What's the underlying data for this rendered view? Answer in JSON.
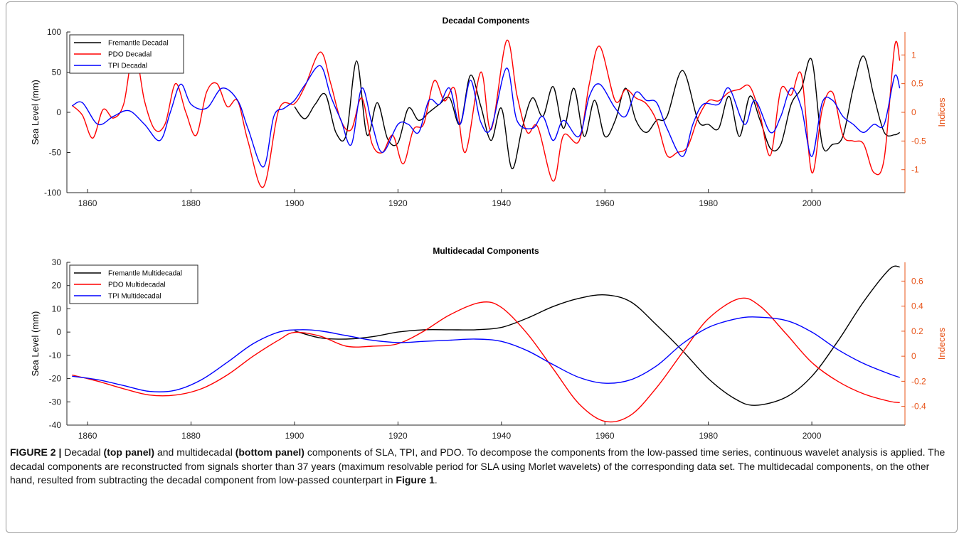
{
  "chart_data": [
    {
      "type": "line",
      "title": "Decadal Components",
      "ylabel": "Sea Level (mm)",
      "y2label": "Indices",
      "xlim": [
        1856,
        2018
      ],
      "ylim": [
        -100,
        100
      ],
      "y2lim": [
        -1.4,
        1.4
      ],
      "xticks": [
        1860,
        1880,
        1900,
        1920,
        1940,
        1960,
        1980,
        2000
      ],
      "yticks": [
        -100,
        -50,
        0,
        50,
        100
      ],
      "y2ticks": [
        -1,
        -0.5,
        0,
        0.5,
        1
      ],
      "y2ticklabels": [
        "-1",
        "-0.5",
        "0",
        "0.5",
        "1"
      ],
      "legend_position": "top-left",
      "series": [
        {
          "name": "Fremantle Decadal",
          "color": "#000000",
          "axis": "left",
          "x": [
            1900,
            1902,
            1904,
            1906,
            1908,
            1910,
            1912,
            1914,
            1916,
            1918,
            1920,
            1922,
            1924,
            1926,
            1928,
            1930,
            1932,
            1934,
            1936,
            1938,
            1940,
            1942,
            1944,
            1946,
            1948,
            1950,
            1952,
            1954,
            1956,
            1958,
            1960,
            1962,
            1964,
            1966,
            1968,
            1970,
            1972,
            1975,
            1978,
            1980,
            1982,
            1984,
            1986,
            1988,
            1990,
            1992,
            1994,
            1996,
            1998,
            2000,
            2002,
            2004,
            2006,
            2008,
            2010,
            2012,
            2014,
            2016,
            2017
          ],
          "y": [
            7,
            -8,
            10,
            22,
            -25,
            -28,
            64,
            -28,
            12,
            -33,
            -38,
            5,
            -10,
            0,
            10,
            18,
            -15,
            46,
            8,
            -35,
            5,
            -70,
            -20,
            18,
            -5,
            32,
            -20,
            30,
            -30,
            15,
            -30,
            -10,
            30,
            -10,
            -25,
            -10,
            -5,
            52,
            -10,
            -15,
            -20,
            20,
            -30,
            20,
            -10,
            -45,
            -40,
            10,
            30,
            65,
            -40,
            -40,
            -30,
            30,
            70,
            20,
            -25,
            -28,
            -25
          ]
        },
        {
          "name": "PDO Decadal",
          "color": "#ff0000",
          "axis": "right",
          "x": [
            1857,
            1859,
            1861,
            1863,
            1865,
            1867,
            1869,
            1871,
            1873,
            1875,
            1877,
            1879,
            1881,
            1883,
            1885,
            1887,
            1889,
            1891,
            1894,
            1897,
            1900,
            1902,
            1905,
            1907,
            1909,
            1911,
            1913,
            1915,
            1917,
            1919,
            1921,
            1923,
            1925,
            1927,
            1929,
            1931,
            1933,
            1936,
            1938,
            1941,
            1943,
            1945,
            1947,
            1950,
            1952,
            1955,
            1957,
            1959,
            1962,
            1964,
            1966,
            1968,
            1970,
            1972,
            1974,
            1976,
            1978,
            1980,
            1982,
            1984,
            1986,
            1988,
            1990,
            1992,
            1994,
            1996,
            1998,
            2000,
            2002,
            2004,
            2006,
            2008,
            2010,
            2012,
            2014,
            2016,
            2017
          ],
          "y": [
            0.12,
            -0.05,
            -0.45,
            0.05,
            -0.1,
            0.15,
            1.1,
            0.2,
            -0.3,
            -0.2,
            0.5,
            0.0,
            -0.4,
            0.35,
            0.5,
            0.1,
            0.2,
            -0.5,
            -1.3,
            0.05,
            0.15,
            0.45,
            1.05,
            0.5,
            -0.15,
            -0.3,
            0.25,
            -0.55,
            -0.7,
            -0.4,
            -0.9,
            -0.3,
            -0.2,
            0.55,
            0.2,
            0.4,
            -0.7,
            0.7,
            -0.3,
            1.25,
            0.3,
            -0.35,
            -0.25,
            -1.2,
            -0.4,
            -0.5,
            0.5,
            1.15,
            0.2,
            0.4,
            0.25,
            0.15,
            -0.15,
            -0.75,
            -0.7,
            -0.6,
            -0.1,
            0.2,
            0.2,
            0.35,
            0.4,
            0.45,
            -0.05,
            -0.75,
            0.4,
            0.3,
            0.65,
            -1.05,
            0.05,
            0.35,
            -0.4,
            -0.5,
            -0.55,
            -1.05,
            -0.8,
            1.15,
            0.9
          ]
        },
        {
          "name": "TPI Decadal",
          "color": "#0000ff",
          "axis": "left",
          "x": [
            1857,
            1859,
            1862,
            1865,
            1868,
            1871,
            1874,
            1876,
            1878,
            1880,
            1883,
            1886,
            1889,
            1891,
            1894,
            1896,
            1898,
            1900,
            1902,
            1905,
            1907,
            1909,
            1911,
            1913,
            1915,
            1917,
            1920,
            1922,
            1924,
            1926,
            1928,
            1930,
            1932,
            1934,
            1936,
            1938,
            1941,
            1943,
            1946,
            1948,
            1950,
            1952,
            1955,
            1957,
            1959,
            1962,
            1964,
            1966,
            1968,
            1970,
            1972,
            1975,
            1977,
            1979,
            1982,
            1984,
            1987,
            1989,
            1992,
            1994,
            1996,
            1998,
            2000,
            2002,
            2004,
            2006,
            2008,
            2010,
            2012,
            2014,
            2016,
            2017
          ],
          "y": [
            8,
            12,
            -15,
            -5,
            2,
            -15,
            -35,
            0,
            35,
            10,
            5,
            30,
            15,
            -20,
            -68,
            -5,
            5,
            15,
            34,
            58,
            20,
            -10,
            -40,
            30,
            -15,
            -50,
            -15,
            -15,
            -25,
            15,
            10,
            30,
            -15,
            40,
            -12,
            -20,
            55,
            -10,
            -20,
            -5,
            -35,
            -10,
            -30,
            20,
            35,
            5,
            -5,
            25,
            15,
            12,
            -20,
            -55,
            -15,
            10,
            10,
            30,
            -15,
            15,
            -25,
            -5,
            30,
            5,
            -55,
            12,
            15,
            -5,
            -15,
            -25,
            -15,
            -15,
            45,
            30
          ]
        }
      ]
    },
    {
      "type": "line",
      "title": "Multidecadal Components",
      "ylabel": "Sea Level (mm)",
      "y2label": "Indeces",
      "xlim": [
        1856,
        2018
      ],
      "ylim": [
        -40,
        30
      ],
      "y2lim": [
        -0.55,
        0.75
      ],
      "xticks": [
        1860,
        1880,
        1900,
        1920,
        1940,
        1960,
        1980,
        2000
      ],
      "yticks": [
        -40,
        -30,
        -20,
        -10,
        0,
        10,
        20,
        30
      ],
      "y2ticks": [
        -0.4,
        -0.2,
        0,
        0.2,
        0.4,
        0.6
      ],
      "y2ticklabels": [
        "-0.4",
        "-0.2",
        "0",
        "0.2",
        "0.4",
        "0.6"
      ],
      "legend_position": "top-left",
      "series": [
        {
          "name": "Fremantle Multidecadal",
          "color": "#000000",
          "axis": "left",
          "x": [
            1900,
            1905,
            1910,
            1915,
            1920,
            1925,
            1930,
            1935,
            1940,
            1945,
            1950,
            1955,
            1960,
            1965,
            1970,
            1975,
            1980,
            1985,
            1989,
            1995,
            2000,
            2005,
            2010,
            2015,
            2017
          ],
          "y": [
            0.5,
            -2.5,
            -3,
            -2,
            0,
            1,
            1,
            1,
            2,
            6,
            11,
            14.5,
            16,
            13,
            3,
            -8,
            -20,
            -28.5,
            -31.5,
            -28,
            -19,
            -4,
            13,
            27,
            28
          ]
        },
        {
          "name": "PDO Multidecadal",
          "color": "#ff0000",
          "axis": "right",
          "x": [
            1857,
            1862,
            1867,
            1872,
            1877,
            1882,
            1887,
            1892,
            1897,
            1900,
            1905,
            1910,
            1915,
            1920,
            1925,
            1930,
            1936,
            1940,
            1945,
            1950,
            1955,
            1960,
            1965,
            1970,
            1975,
            1980,
            1986,
            1990,
            1995,
            2000,
            2005,
            2010,
            2015,
            2017
          ],
          "y": [
            -0.15,
            -0.2,
            -0.26,
            -0.31,
            -0.31,
            -0.26,
            -0.15,
            0.0,
            0.13,
            0.19,
            0.16,
            0.08,
            0.08,
            0.1,
            0.2,
            0.33,
            0.43,
            0.39,
            0.18,
            -0.1,
            -0.38,
            -0.52,
            -0.47,
            -0.25,
            0.03,
            0.3,
            0.46,
            0.4,
            0.18,
            -0.05,
            -0.2,
            -0.3,
            -0.36,
            -0.37
          ]
        },
        {
          "name": "TPI Multidecadal",
          "color": "#0000ff",
          "axis": "left",
          "x": [
            1857,
            1862,
            1867,
            1872,
            1877,
            1882,
            1887,
            1892,
            1897,
            1901,
            1905,
            1910,
            1915,
            1920,
            1925,
            1930,
            1935,
            1940,
            1945,
            1950,
            1955,
            1960,
            1965,
            1970,
            1975,
            1980,
            1985,
            1989,
            1995,
            2000,
            2005,
            2010,
            2015,
            2017
          ],
          "y": [
            -19,
            -20.5,
            -23,
            -25.5,
            -25,
            -20.5,
            -13,
            -5,
            0,
            1,
            0.5,
            -1.5,
            -3.5,
            -4.5,
            -4,
            -3.5,
            -3,
            -4,
            -8,
            -14,
            -19.5,
            -22,
            -20.5,
            -14.5,
            -5,
            2,
            5.5,
            6.5,
            5,
            0,
            -7.5,
            -13.5,
            -18,
            -19.5
          ]
        }
      ]
    }
  ],
  "caption": {
    "figure_label": "FIGURE 2 |",
    "t1": " Decadal ",
    "b1": "(top panel)",
    "t2": " and multidecadal ",
    "b2": "(bottom panel)",
    "t3": " components of SLA, TPI, and PDO. To decompose the components from the low-passed time series, continuous wavelet analysis is applied. The decadal components are reconstructed from signals shorter than 37 years (maximum resolvable period for SLA using Morlet wavelets) of the corresponding data set. The multidecadal components, on the other hand, resulted from subtracting the decadal component from low-passed counterpart in ",
    "b3": "Figure 1",
    "t4": "."
  }
}
